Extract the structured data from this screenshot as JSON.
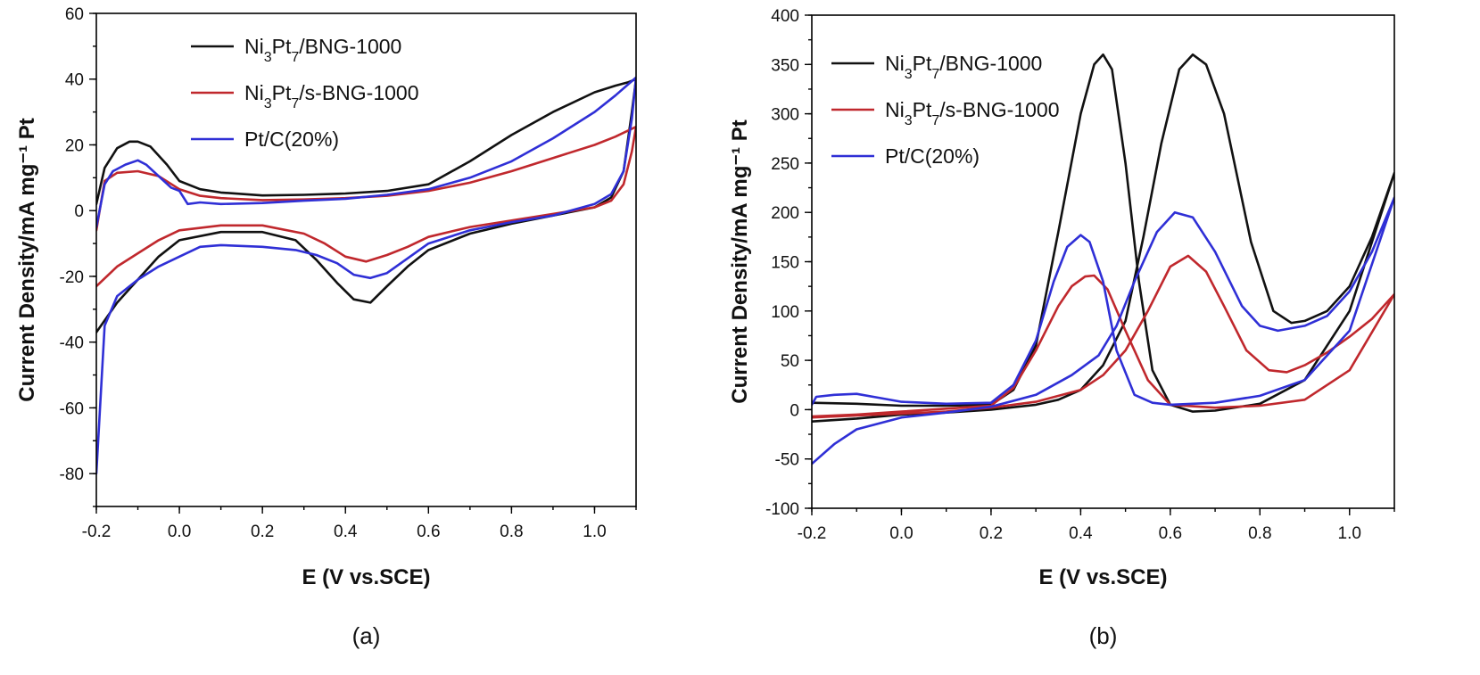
{
  "chart_data": [
    {
      "type": "line",
      "panel_label": "(a)",
      "xlabel": "E (V vs.SCE)",
      "ylabel": "Current Density/mA mg⁻¹ Pt",
      "xlim": [
        -0.2,
        1.1
      ],
      "ylim": [
        -90,
        60
      ],
      "x_ticks": [
        "-0.2",
        "0.0",
        "0.2",
        "0.4",
        "0.6",
        "0.8",
        "1.0"
      ],
      "y_ticks": [
        "-80",
        "-60",
        "-40",
        "-20",
        "0",
        "20",
        "40",
        "60"
      ],
      "grid": false,
      "legend_position": "top-left",
      "legend": [
        "Ni3Pt7/BNG-1000",
        "Ni3Pt7/s-BNG-1000",
        "Pt/C(20%)"
      ],
      "series": [
        {
          "name": "Ni3Pt7/BNG-1000",
          "color": "#111111",
          "x": [
            -0.2,
            -0.18,
            -0.15,
            -0.12,
            -0.1,
            -0.07,
            -0.03,
            0.0,
            0.05,
            0.1,
            0.2,
            0.3,
            0.4,
            0.5,
            0.6,
            0.7,
            0.8,
            0.9,
            1.0,
            1.05,
            1.08,
            1.1,
            1.09,
            1.07,
            1.04,
            1.0,
            0.9,
            0.8,
            0.7,
            0.6,
            0.55,
            0.5,
            0.46,
            0.42,
            0.38,
            0.33,
            0.28,
            0.2,
            0.1,
            0.0,
            -0.05,
            -0.1,
            -0.15,
            -0.2
          ],
          "y": [
            2,
            13,
            19,
            21,
            21,
            19.5,
            14,
            9,
            6.5,
            5.5,
            4.6,
            4.8,
            5.2,
            6,
            8,
            15,
            23,
            30,
            36,
            38,
            39,
            40,
            30,
            12,
            4,
            1,
            -1.5,
            -4,
            -7,
            -12,
            -17,
            -23,
            -28,
            -27,
            -22,
            -15,
            -9,
            -6.5,
            -6.5,
            -9,
            -14,
            -21,
            -28,
            -37
          ]
        },
        {
          "name": "Ni3Pt7/s-BNG-1000",
          "color": "#c0282d",
          "x": [
            -0.2,
            -0.18,
            -0.15,
            -0.1,
            -0.05,
            0.0,
            0.05,
            0.1,
            0.2,
            0.3,
            0.4,
            0.5,
            0.6,
            0.7,
            0.8,
            0.9,
            1.0,
            1.05,
            1.1,
            1.09,
            1.07,
            1.04,
            1.0,
            0.9,
            0.8,
            0.7,
            0.6,
            0.55,
            0.5,
            0.45,
            0.4,
            0.35,
            0.3,
            0.2,
            0.1,
            0.0,
            -0.05,
            -0.1,
            -0.15,
            -0.2
          ],
          "y": [
            -6,
            9,
            11.5,
            12,
            10.5,
            6.5,
            4.5,
            3.8,
            3.2,
            3.4,
            3.8,
            4.5,
            6,
            8.5,
            12,
            16,
            20,
            22.5,
            25.5,
            18,
            8,
            3,
            1,
            -1,
            -3,
            -5,
            -8,
            -11,
            -13.5,
            -15.5,
            -14,
            -10,
            -7,
            -4.5,
            -4.5,
            -6,
            -9,
            -13,
            -17,
            -23
          ]
        },
        {
          "name": "Pt/C(20%)",
          "color": "#2f2fd6",
          "x": [
            -0.2,
            -0.18,
            -0.16,
            -0.13,
            -0.1,
            -0.08,
            -0.05,
            -0.02,
            0.0,
            0.02,
            0.05,
            0.1,
            0.2,
            0.3,
            0.4,
            0.5,
            0.6,
            0.7,
            0.8,
            0.9,
            1.0,
            1.05,
            1.1,
            1.09,
            1.07,
            1.04,
            1.0,
            0.9,
            0.8,
            0.7,
            0.6,
            0.55,
            0.5,
            0.46,
            0.42,
            0.38,
            0.33,
            0.28,
            0.2,
            0.1,
            0.05,
            0.0,
            -0.05,
            -0.1,
            -0.15,
            -0.18,
            -0.2
          ],
          "y": [
            -5,
            8,
            12,
            14,
            15.3,
            14,
            10.5,
            7,
            6,
            2,
            2.5,
            2,
            2.3,
            3,
            3.6,
            4.8,
            6.5,
            10,
            15,
            22,
            30,
            35,
            40.5,
            28,
            12,
            5,
            2,
            -1.5,
            -3.5,
            -6,
            -10,
            -14.5,
            -19,
            -20.5,
            -19.5,
            -16,
            -13.5,
            -12,
            -11,
            -10.5,
            -11,
            -14,
            -17,
            -21,
            -26,
            -35,
            -80
          ]
        }
      ]
    },
    {
      "type": "line",
      "panel_label": "(b)",
      "xlabel": "E (V vs.SCE)",
      "ylabel": "Current Density/mA mg⁻¹ Pt",
      "xlim": [
        -0.2,
        1.1
      ],
      "ylim": [
        -100,
        400
      ],
      "x_ticks": [
        "-0.2",
        "0.0",
        "0.2",
        "0.4",
        "0.6",
        "0.8",
        "1.0"
      ],
      "y_ticks": [
        "-100",
        "-50",
        "0",
        "50",
        "100",
        "150",
        "200",
        "250",
        "300",
        "350",
        "400"
      ],
      "grid": false,
      "legend_position": "top-left",
      "legend": [
        "Ni3Pt7/BNG-1000",
        "Ni3Pt7/s-BNG-1000",
        "Pt/C(20%)"
      ],
      "series": [
        {
          "name": "Ni3Pt7/BNG-1000",
          "color": "#111111",
          "x": [
            -0.2,
            -0.1,
            0.0,
            0.1,
            0.2,
            0.25,
            0.3,
            0.35,
            0.4,
            0.43,
            0.45,
            0.47,
            0.5,
            0.53,
            0.56,
            0.6,
            0.65,
            0.7,
            0.8,
            0.9,
            1.0,
            1.1,
            1.05,
            1.0,
            0.95,
            0.9,
            0.87,
            0.83,
            0.78,
            0.72,
            0.68,
            0.65,
            0.62,
            0.58,
            0.54,
            0.5,
            0.45,
            0.4,
            0.35,
            0.3,
            0.2,
            0.1,
            0.0,
            -0.1,
            -0.2
          ],
          "y": [
            7,
            6,
            4,
            4,
            5,
            20,
            65,
            180,
            300,
            350,
            360,
            345,
            250,
            130,
            40,
            5,
            -2,
            -1,
            6,
            30,
            100,
            240,
            175,
            125,
            100,
            90,
            88,
            100,
            170,
            300,
            350,
            360,
            345,
            270,
            175,
            90,
            45,
            20,
            10,
            5,
            0,
            -3,
            -5,
            -9,
            -12
          ]
        },
        {
          "name": "Ni3Pt7/s-BNG-1000",
          "color": "#c0282d",
          "x": [
            -0.2,
            -0.1,
            0.0,
            0.1,
            0.2,
            0.25,
            0.3,
            0.35,
            0.38,
            0.41,
            0.43,
            0.46,
            0.5,
            0.55,
            0.6,
            0.7,
            0.8,
            0.9,
            1.0,
            1.1,
            1.05,
            1.0,
            0.95,
            0.9,
            0.86,
            0.82,
            0.77,
            0.72,
            0.68,
            0.64,
            0.6,
            0.55,
            0.5,
            0.45,
            0.4,
            0.3,
            0.2,
            0.1,
            0.0,
            -0.1,
            -0.2
          ],
          "y": [
            -7,
            -5,
            -2,
            1,
            4,
            22,
            60,
            105,
            125,
            135,
            136,
            122,
            80,
            30,
            5,
            2,
            4,
            10,
            40,
            117,
            92,
            74,
            58,
            45,
            38,
            40,
            60,
            105,
            140,
            156,
            145,
            100,
            60,
            35,
            20,
            8,
            2,
            -2,
            -4,
            -6,
            -8
          ]
        },
        {
          "name": "Pt/C(20%)",
          "color": "#2f2fd6",
          "x": [
            -0.2,
            -0.19,
            -0.15,
            -0.1,
            -0.05,
            0.0,
            0.1,
            0.2,
            0.25,
            0.3,
            0.34,
            0.37,
            0.4,
            0.42,
            0.45,
            0.48,
            0.52,
            0.56,
            0.6,
            0.7,
            0.8,
            0.9,
            1.0,
            1.1,
            1.05,
            1.0,
            0.95,
            0.9,
            0.84,
            0.8,
            0.76,
            0.7,
            0.65,
            0.61,
            0.57,
            0.52,
            0.48,
            0.44,
            0.38,
            0.3,
            0.2,
            0.1,
            0.0,
            -0.1,
            -0.15,
            -0.2
          ],
          "y": [
            5,
            13,
            15,
            16,
            12,
            8,
            6,
            7,
            25,
            70,
            130,
            165,
            177,
            170,
            130,
            60,
            15,
            7,
            5,
            7,
            14,
            30,
            80,
            215,
            160,
            120,
            95,
            85,
            80,
            85,
            105,
            160,
            195,
            200,
            180,
            130,
            85,
            55,
            35,
            15,
            3,
            -3,
            -8,
            -20,
            -35,
            -55
          ]
        }
      ]
    }
  ]
}
